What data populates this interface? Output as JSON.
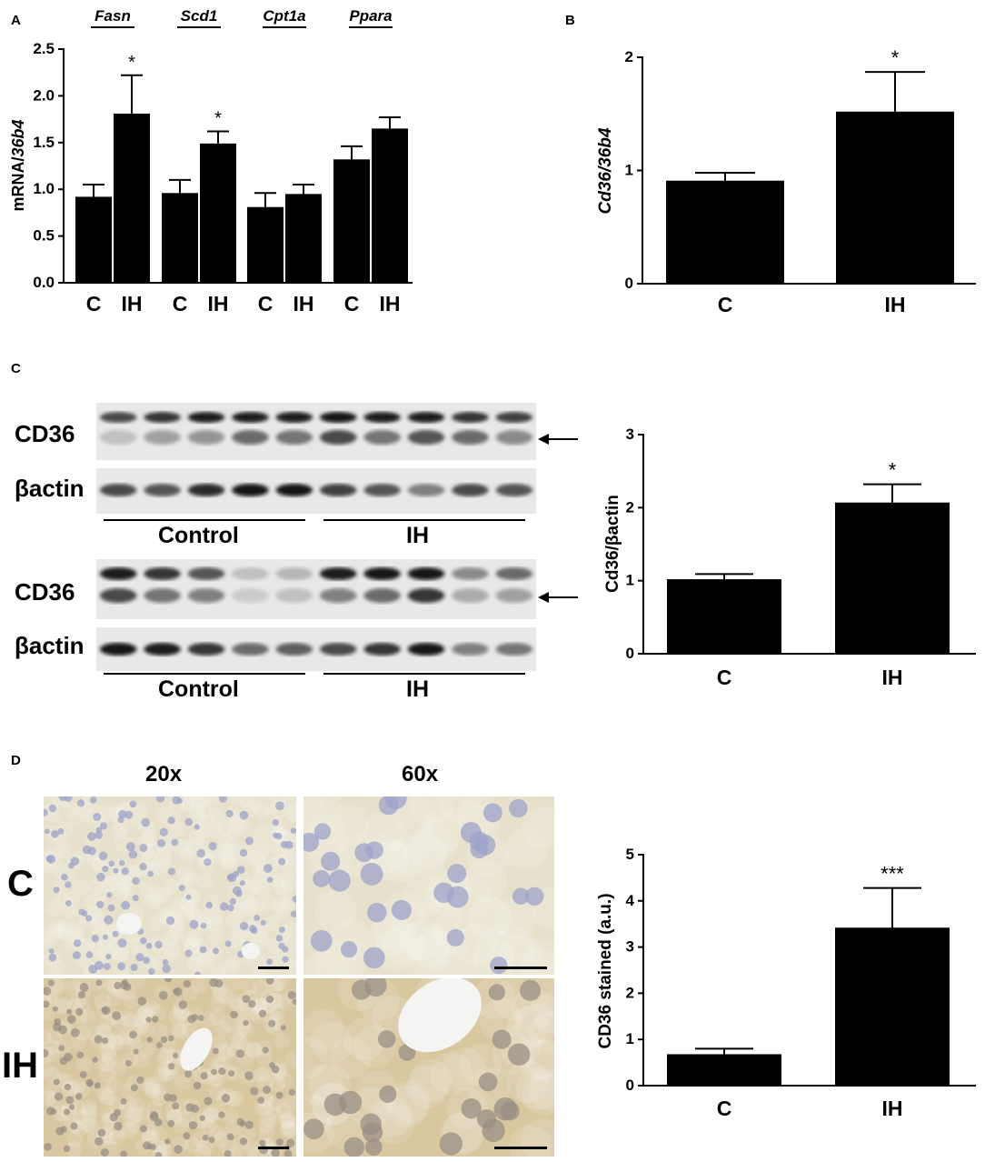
{
  "panels": {
    "A": "A",
    "B": "B",
    "C": "C",
    "D": "D"
  },
  "blot": {
    "band_top": "CD36",
    "band_bottom": "βactin",
    "group_left": "Control",
    "group_right": "IH"
  },
  "micrographs": {
    "col_left": "20x",
    "col_right": "60x",
    "row_top": "C",
    "row_bottom": "IH",
    "colors": {
      "control_bg": "#e7e1cc",
      "control_nuclei": "#9da3c9",
      "ih_bg": "#d9c7a0",
      "ih_nuclei": "#9a8f86"
    }
  },
  "chart_data": [
    {
      "panel": "A",
      "type": "bar",
      "groups": [
        "Fasn",
        "Scd1",
        "Cpt1a",
        "Ppara"
      ],
      "categories": [
        "C",
        "IH",
        "C",
        "IH",
        "C",
        "IH",
        "C",
        "IH"
      ],
      "values": [
        0.92,
        1.81,
        0.96,
        1.49,
        0.81,
        0.95,
        1.32,
        1.65
      ],
      "errors": [
        0.13,
        0.41,
        0.14,
        0.13,
        0.15,
        0.1,
        0.14,
        0.12
      ],
      "annotations": [
        "",
        "*",
        "",
        "*",
        "",
        "",
        "",
        ""
      ],
      "ylabel_prefix": "mRNA/",
      "ylabel_italic": "36b4",
      "yticks": [
        "0.0",
        "0.5",
        "1.0",
        "1.5",
        "2.0",
        "2.5"
      ],
      "ylim": [
        0,
        2.5
      ]
    },
    {
      "panel": "B",
      "type": "bar",
      "categories": [
        "C",
        "IH"
      ],
      "values": [
        0.91,
        1.52
      ],
      "errors": [
        0.07,
        0.35
      ],
      "annotations": [
        "",
        "*"
      ],
      "ylabel": "Cd36/36b4",
      "yticks": [
        "0",
        "1",
        "2"
      ],
      "ylim": [
        0,
        2
      ]
    },
    {
      "panel": "C",
      "type": "bar",
      "categories": [
        "C",
        "IH"
      ],
      "values": [
        1.02,
        2.07
      ],
      "errors": [
        0.07,
        0.25
      ],
      "annotations": [
        "",
        "*"
      ],
      "ylabel": "Cd36/βactin",
      "yticks": [
        "0",
        "1",
        "2",
        "3"
      ],
      "ylim": [
        0,
        3
      ]
    },
    {
      "panel": "D",
      "type": "bar",
      "categories": [
        "C",
        "IH"
      ],
      "values": [
        0.68,
        3.42
      ],
      "errors": [
        0.12,
        0.86
      ],
      "annotations": [
        "",
        "***"
      ],
      "ylabel": "CD36 stained (a.u.)",
      "yticks": [
        "0",
        "1",
        "2",
        "3",
        "4",
        "5"
      ],
      "ylim": [
        0,
        5
      ]
    }
  ]
}
